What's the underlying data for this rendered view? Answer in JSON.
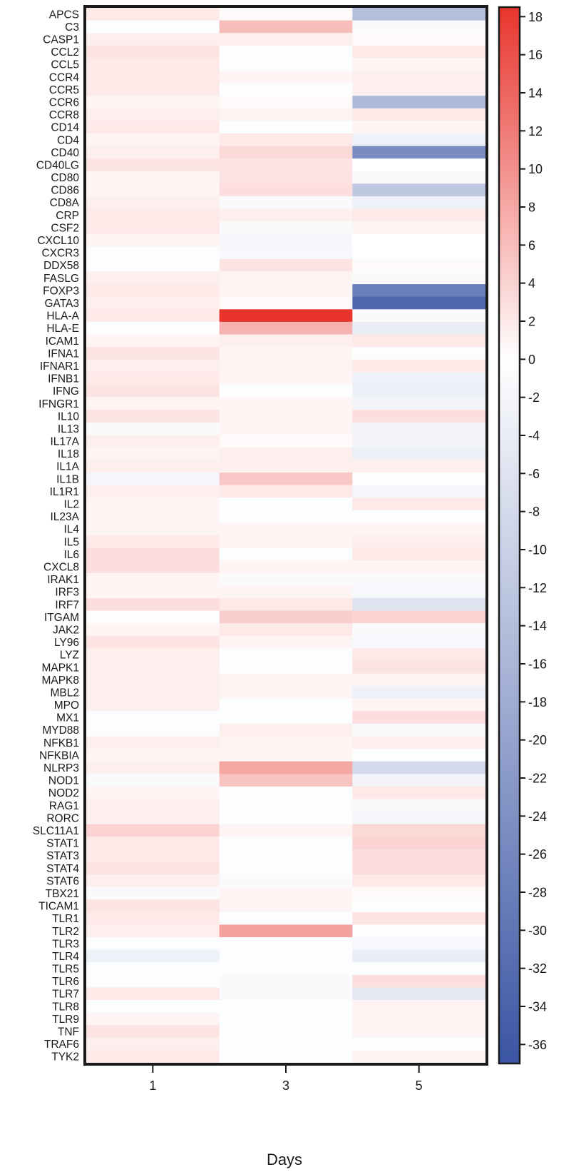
{
  "chart_data": {
    "type": "heatmap",
    "xlabel": "Days",
    "columns": [
      "1",
      "3",
      "5"
    ],
    "rows": [
      "APCS",
      "C3",
      "CASP1",
      "CCL2",
      "CCL5",
      "CCR4",
      "CCR5",
      "CCR6",
      "CCR8",
      "CD14",
      "CD4",
      "CD40",
      "CD40LG",
      "CD80",
      "CD86",
      "CD8A",
      "CRP",
      "CSF2",
      "CXCL10",
      "CXCR3",
      "DDX58",
      "FASLG",
      "FOXP3",
      "GATA3",
      "HLA-A",
      "HLA-E",
      "ICAM1",
      "IFNA1",
      "IFNAR1",
      "IFNB1",
      "IFNG",
      "IFNGR1",
      "IL10",
      "IL13",
      "IL17A",
      "IL18",
      "IL1A",
      "IL1B",
      "IL1R1",
      "IL2",
      "IL23A",
      "IL4",
      "IL5",
      "IL6",
      "CXCL8",
      "IRAK1",
      "IRF3",
      "IRF7",
      "ITGAM",
      "JAK2",
      "LY96",
      "LYZ",
      "MAPK1",
      "MAPK8",
      "MBL2",
      "MPO",
      "MX1",
      "MYD88",
      "NFKB1",
      "NFKBIA",
      "NLRP3",
      "NOD1",
      "NOD2",
      "RAG1",
      "RORC",
      "SLC11A1",
      "STAT1",
      "STAT3",
      "STAT4",
      "STAT6",
      "TBX21",
      "TICAM1",
      "TLR1",
      "TLR2",
      "TLR3",
      "TLR4",
      "TLR5",
      "TLR6",
      "TLR7",
      "TLR8",
      "TLR9",
      "TNF",
      "TRAF6",
      "TYK2"
    ],
    "values": [
      [
        2,
        0.5,
        -14
      ],
      [
        -0.5,
        6,
        -1
      ],
      [
        1.5,
        1.5,
        0.5
      ],
      [
        2.5,
        -0.5,
        2
      ],
      [
        2,
        -0.5,
        1
      ],
      [
        2,
        1,
        1.5
      ],
      [
        2,
        -0.5,
        1.5
      ],
      [
        1,
        0.5,
        -15
      ],
      [
        1.5,
        1,
        2
      ],
      [
        2,
        -0.5,
        1
      ],
      [
        1,
        2,
        -3
      ],
      [
        1.5,
        3.5,
        -25
      ],
      [
        2.5,
        2.5,
        0
      ],
      [
        1,
        2.5,
        -1
      ],
      [
        1,
        3,
        -12
      ],
      [
        1.5,
        -1,
        -3
      ],
      [
        2,
        1.5,
        2
      ],
      [
        2,
        -1,
        1
      ],
      [
        1,
        -2,
        0
      ],
      [
        -0.5,
        -1.5,
        0
      ],
      [
        -0.5,
        2.5,
        0.5
      ],
      [
        1.5,
        1,
        -1
      ],
      [
        2,
        1,
        -28
      ],
      [
        1.5,
        0.5,
        -33
      ],
      [
        2,
        18.5,
        -1
      ],
      [
        -0.5,
        7,
        -4
      ],
      [
        1,
        1.5,
        2
      ],
      [
        2.5,
        1,
        -0.5
      ],
      [
        1.5,
        1,
        2
      ],
      [
        2,
        1,
        -3
      ],
      [
        2.5,
        -0.5,
        -3.5
      ],
      [
        1,
        1,
        -2.5
      ],
      [
        2.5,
        1,
        3
      ],
      [
        -1,
        1,
        -2.5
      ],
      [
        1.5,
        0.5,
        -2.5
      ],
      [
        1,
        1.5,
        -3.5
      ],
      [
        1.5,
        1.5,
        1.5
      ],
      [
        -2,
        5,
        -0.5
      ],
      [
        1.5,
        2,
        -2
      ],
      [
        1,
        -0.5,
        2
      ],
      [
        1,
        -0.5,
        -0.5
      ],
      [
        1,
        1,
        1
      ],
      [
        2,
        1,
        1.5
      ],
      [
        3,
        -0.5,
        2
      ],
      [
        3,
        1,
        1
      ],
      [
        1,
        -1,
        -1
      ],
      [
        1,
        1,
        -1.5
      ],
      [
        3,
        2,
        -6
      ],
      [
        -0.5,
        4.5,
        4
      ],
      [
        1,
        2,
        -1
      ],
      [
        2.5,
        1,
        -1.5
      ],
      [
        1.5,
        -0.5,
        2
      ],
      [
        1.5,
        -0.5,
        2.5
      ],
      [
        1.5,
        1,
        1
      ],
      [
        1.5,
        1,
        -3
      ],
      [
        1.5,
        -0.5,
        1
      ],
      [
        -0.5,
        -0.5,
        3
      ],
      [
        -0.5,
        1.5,
        -1
      ],
      [
        1.5,
        1,
        1.5
      ],
      [
        1,
        1,
        -0.5
      ],
      [
        1.5,
        8,
        -8
      ],
      [
        -1,
        5.5,
        -2.5
      ],
      [
        1,
        -0.5,
        2
      ],
      [
        1.5,
        -0.5,
        -1
      ],
      [
        1.5,
        -0.5,
        -2
      ],
      [
        4,
        1,
        3.5
      ],
      [
        2,
        -0.5,
        4
      ],
      [
        2,
        -0.5,
        3
      ],
      [
        2.5,
        -0.5,
        3
      ],
      [
        1.5,
        -1,
        2
      ],
      [
        -1,
        1,
        0.5
      ],
      [
        2.5,
        1,
        -0.5
      ],
      [
        2,
        -0.5,
        2.5
      ],
      [
        1.5,
        8.5,
        -0.5
      ],
      [
        -0.5,
        -0.5,
        -1.5
      ],
      [
        -3,
        -0.5,
        -4
      ],
      [
        -0.5,
        -0.5,
        -0.5
      ],
      [
        -0.5,
        -1,
        3
      ],
      [
        2,
        -1,
        -5
      ],
      [
        -0.5,
        -0.5,
        1
      ],
      [
        1,
        -0.5,
        1
      ],
      [
        2.5,
        -0.5,
        1
      ],
      [
        1.5,
        -0.5,
        -0.5
      ],
      [
        2,
        -0.5,
        1
      ]
    ],
    "colorscale": {
      "min": -37,
      "max": 18.5,
      "low_color": "#3a55a3",
      "mid_color": "#ffffff",
      "high_color": "#e8342d",
      "ticks": [
        18,
        16,
        14,
        12,
        10,
        8,
        6,
        4,
        2,
        0,
        -2,
        -4,
        -6,
        -8,
        -10,
        -12,
        -14,
        -16,
        -18,
        -20,
        -22,
        -24,
        -26,
        -28,
        -30,
        -32,
        -34,
        -36
      ]
    },
    "grid": false,
    "legend_position": "right"
  }
}
